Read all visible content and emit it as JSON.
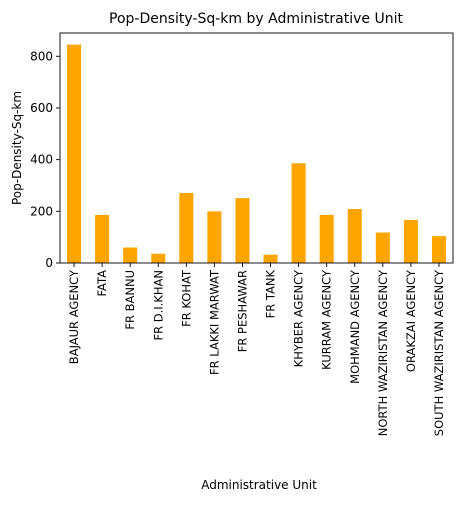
{
  "chart_data": {
    "type": "bar",
    "title": "Pop-Density-Sq-km by Administrative Unit",
    "xlabel": "Administrative Unit",
    "ylabel": "Pop-Density-Sq-km",
    "categories": [
      "BAJAUR AGENCY",
      "FATA",
      "FR BANNU",
      "FR D.I.KHAN",
      "FR KOHAT",
      "FR LAKKI MARWAT",
      "FR PESHAWAR",
      "FR TANK",
      "KHYBER AGENCY",
      "KURRAM AGENCY",
      "MOHMAND AGENCY",
      "NORTH WAZIRISTAN AGENCY",
      "ORAKZAI AGENCY",
      "SOUTH WAZIRISTAN AGENCY"
    ],
    "values": [
      845,
      186,
      60,
      36,
      271,
      200,
      251,
      32,
      386,
      186,
      209,
      118,
      167,
      104
    ],
    "ylim": [
      0,
      890
    ],
    "yticks": [
      0,
      200,
      400,
      600,
      800
    ],
    "grid": false,
    "bar_color": "#ffa500"
  }
}
